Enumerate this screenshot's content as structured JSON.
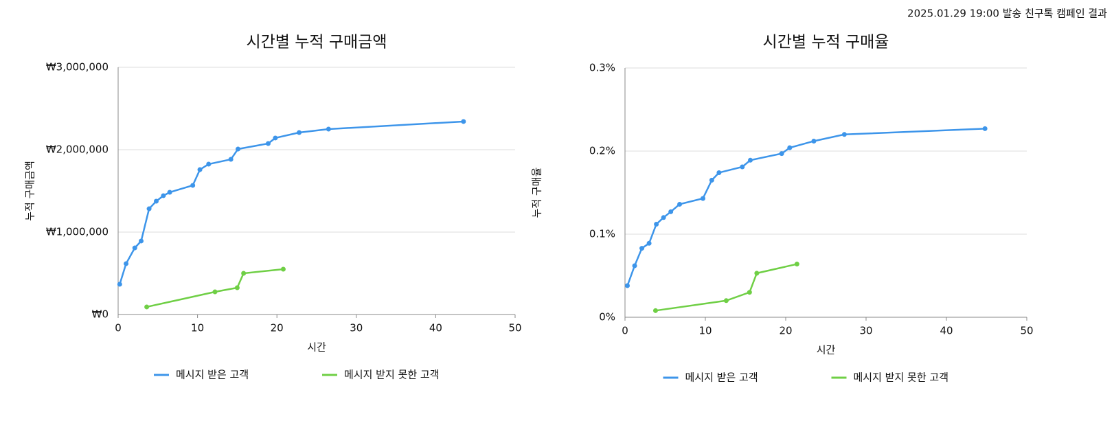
{
  "caption": "2025.01.29 19:00 발송 친구톡 캠페인 결과",
  "chart_data": [
    {
      "type": "line",
      "title": "시간별 누적 구매금액",
      "xlabel": "시간",
      "ylabel": "누적 구매금액",
      "xlim": [
        0,
        50
      ],
      "xticks": [
        0,
        10,
        20,
        30,
        40,
        50
      ],
      "ylim": [
        0,
        3000000
      ],
      "yticks": [
        {
          "value": 0,
          "label": "₩0"
        },
        {
          "value": 1000000,
          "label": "₩1,000,000"
        },
        {
          "value": 2000000,
          "label": "₩2,000,000"
        },
        {
          "value": 3000000,
          "label": "₩3,000,000"
        }
      ],
      "grid": true,
      "legend": "bottom",
      "series": [
        {
          "name": "메시지 받은 고객",
          "color": "#3d95ea",
          "x": [
            0.2,
            1.0,
            2.1,
            2.9,
            3.9,
            4.8,
            5.7,
            6.5,
            9.4,
            10.3,
            11.4,
            14.2,
            15.1,
            18.9,
            19.8,
            22.8,
            26.5,
            43.5
          ],
          "values": [
            367000,
            617000,
            808000,
            892000,
            1283000,
            1375000,
            1442000,
            1483000,
            1567000,
            1758000,
            1825000,
            1883000,
            2008000,
            2075000,
            2142000,
            2208000,
            2250000,
            2342000
          ]
        },
        {
          "name": "메시지 받지 못한 고객",
          "color": "#6fcf45",
          "x": [
            3.6,
            12.2,
            15.0,
            15.8,
            20.8
          ],
          "values": [
            92000,
            275000,
            325000,
            500000,
            550000
          ]
        }
      ]
    },
    {
      "type": "line",
      "title": "시간별 누적 구매율",
      "xlabel": "시간",
      "ylabel": "누적 구매율",
      "xlim": [
        0,
        50
      ],
      "xticks": [
        0,
        10,
        20,
        30,
        40,
        50
      ],
      "ylim": [
        0,
        0.3
      ],
      "yticks": [
        {
          "value": 0,
          "label": "0%"
        },
        {
          "value": 0.1,
          "label": "0.1%"
        },
        {
          "value": 0.2,
          "label": "0.2%"
        },
        {
          "value": 0.3,
          "label": "0.3%"
        }
      ],
      "grid": true,
      "legend": "bottom",
      "series": [
        {
          "name": "메시지 받은 고객",
          "color": "#3d95ea",
          "x": [
            0.3,
            1.2,
            2.1,
            3.0,
            3.9,
            4.8,
            5.7,
            6.8,
            9.7,
            10.8,
            11.7,
            14.6,
            15.6,
            19.5,
            20.5,
            23.5,
            27.3,
            44.8
          ],
          "values": [
            0.038,
            0.062,
            0.083,
            0.089,
            0.112,
            0.12,
            0.127,
            0.136,
            0.143,
            0.165,
            0.174,
            0.181,
            0.189,
            0.197,
            0.204,
            0.212,
            0.22,
            0.227
          ]
        },
        {
          "name": "메시지 받지 못한 고객",
          "color": "#6fcf45",
          "x": [
            3.8,
            12.6,
            15.5,
            16.4,
            21.4
          ],
          "values": [
            0.008,
            0.02,
            0.03,
            0.053,
            0.064
          ]
        }
      ]
    }
  ]
}
